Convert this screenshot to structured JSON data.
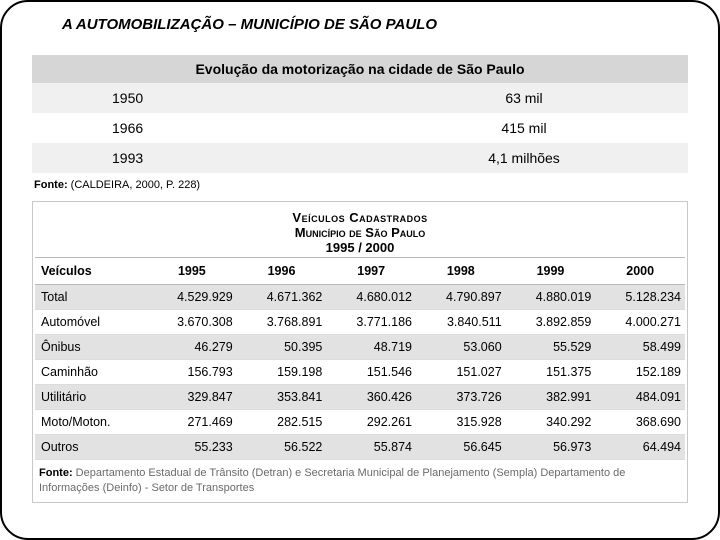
{
  "title": "A AUTOMOBILIZAÇÃO – MUNICÍPIO DE SÃO PAULO",
  "table1": {
    "header": "Evolução da motorização na cidade de São Paulo",
    "rows": [
      {
        "year": "1950",
        "value": "63 mil"
      },
      {
        "year": "1966",
        "value": "415 mil"
      },
      {
        "year": "1993",
        "value": "4,1 milhões"
      }
    ],
    "source_label": "Fonte:",
    "source_text": "(CALDEIRA, 2000, P. 228)"
  },
  "table2": {
    "title_line1": "Veículos Cadastrados",
    "title_line2": "Município de São Paulo",
    "title_line3": "1995 / 2000",
    "columns": [
      "Veículos",
      "1995",
      "1996",
      "1997",
      "1998",
      "1999",
      "2000"
    ],
    "rows": [
      {
        "label": "Total",
        "cells": [
          "4.529.929",
          "4.671.362",
          "4.680.012",
          "4.790.897",
          "4.880.019",
          "5.128.234"
        ]
      },
      {
        "label": "Automóvel",
        "cells": [
          "3.670.308",
          "3.768.891",
          "3.771.186",
          "3.840.511",
          "3.892.859",
          "4.000.271"
        ]
      },
      {
        "label": "Ônibus",
        "cells": [
          "46.279",
          "50.395",
          "48.719",
          "53.060",
          "55.529",
          "58.499"
        ]
      },
      {
        "label": "Caminhão",
        "cells": [
          "156.793",
          "159.198",
          "151.546",
          "151.027",
          "151.375",
          "152.189"
        ]
      },
      {
        "label": "Utilitário",
        "cells": [
          "329.847",
          "353.841",
          "360.426",
          "373.726",
          "382.991",
          "484.091"
        ]
      },
      {
        "label": "Moto/Moton.",
        "cells": [
          "271.469",
          "282.515",
          "292.261",
          "315.928",
          "340.292",
          "368.690"
        ]
      },
      {
        "label": "Outros",
        "cells": [
          "55.233",
          "56.522",
          "55.874",
          "56.645",
          "56.973",
          "64.494"
        ]
      }
    ],
    "source_label": "Fonte:",
    "source_text": "Departamento Estadual de Trânsito (Detran) e Secretaria Municipal de Planejamento (Sempla) Departamento de Informações (Deinfo) - Setor de Transportes"
  },
  "colors": {
    "header_bg": "#d6d6d6",
    "alt_bg": "#f0f0f0",
    "table2_alt": "#e2e2e2",
    "border": "#000000",
    "source2_color": "#6a6a6a"
  }
}
